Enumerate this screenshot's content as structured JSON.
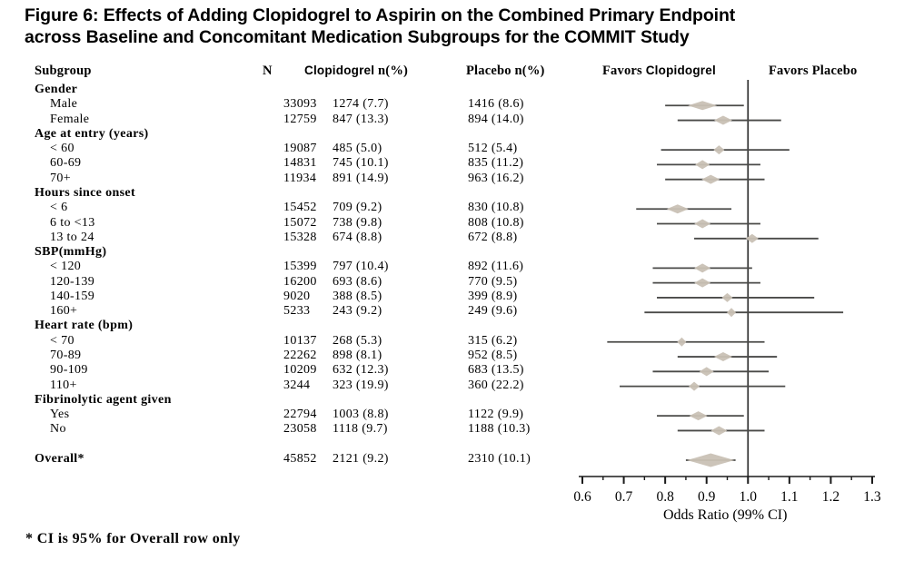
{
  "figure": {
    "title_line1": "Figure 6: Effects of Adding Clopidogrel to Aspirin on the Combined Primary Endpoint",
    "title_line2": "across Baseline and Concomitant Medication Subgroups for the COMMIT Study",
    "footnote": "* CI is 95% for Overall row only"
  },
  "table": {
    "headers": {
      "subgroup": "Subgroup",
      "n": "N",
      "clopidogrel_drug": "Clopidogrel",
      "clopidogrel_pct": "n(%)",
      "placebo": "Placebo n(%)"
    }
  },
  "chart_data": {
    "type": "forest",
    "xlabel": "Odds Ratio (99% CI)",
    "xlim": [
      0.6,
      1.3
    ],
    "ref_line": 1.0,
    "ticks": [
      0.6,
      0.7,
      0.8,
      0.9,
      1.0,
      1.1,
      1.2,
      1.3
    ],
    "favors_left_prefix": "Favors",
    "favors_left_drug": "Clopidogrel",
    "favors_right": "Favors Placebo",
    "diamond_color": "#c9c1b5",
    "line_color": "#4a4a48",
    "rows": [
      {
        "type": "group",
        "label": "Gender"
      },
      {
        "label": "Male",
        "n": "33093",
        "clopidogrel": "1274 (7.7)",
        "placebo": "1416 (8.6)",
        "or": 0.89,
        "lo": 0.8,
        "hi": 0.99,
        "hw": 16
      },
      {
        "label": "Female",
        "n": "12759",
        "clopidogrel": "847 (13.3)",
        "placebo": "894 (14.0)",
        "or": 0.94,
        "lo": 0.83,
        "hi": 1.08,
        "hw": 10
      },
      {
        "type": "group",
        "label": "Age at entry (years)"
      },
      {
        "label": "< 60",
        "n": "19087",
        "clopidogrel": "485 (5.0)",
        "placebo": "512 (5.4)",
        "or": 0.93,
        "lo": 0.79,
        "hi": 1.1,
        "hw": 6
      },
      {
        "label": "60-69",
        "n": "14831",
        "clopidogrel": "745 (10.1)",
        "placebo": "835 (11.2)",
        "or": 0.89,
        "lo": 0.78,
        "hi": 1.03,
        "hw": 8
      },
      {
        "label": "70+",
        "n": "11934",
        "clopidogrel": "891 (14.9)",
        "placebo": "963 (16.2)",
        "or": 0.91,
        "lo": 0.8,
        "hi": 1.04,
        "hw": 10
      },
      {
        "type": "group",
        "label": "Hours since onset"
      },
      {
        "label": "< 6",
        "n": "15452",
        "clopidogrel": "709 (9.2)",
        "placebo": "830 (10.8)",
        "or": 0.83,
        "lo": 0.73,
        "hi": 0.96,
        "hw": 12
      },
      {
        "label": "6 to <13",
        "n": "15072",
        "clopidogrel": "738 (9.8)",
        "placebo": "808 (10.8)",
        "or": 0.89,
        "lo": 0.78,
        "hi": 1.03,
        "hw": 9
      },
      {
        "label": "13 to 24",
        "n": "15328",
        "clopidogrel": "674 (8.8)",
        "placebo": "672 (8.8)",
        "or": 1.01,
        "lo": 0.87,
        "hi": 1.17,
        "hw": 7
      },
      {
        "type": "group",
        "label": "SBP(mmHg)"
      },
      {
        "label": "< 120",
        "n": "15399",
        "clopidogrel": "797 (10.4)",
        "placebo": "892 (11.6)",
        "or": 0.89,
        "lo": 0.77,
        "hi": 1.01,
        "hw": 9
      },
      {
        "label": "120-139",
        "n": "16200",
        "clopidogrel": "693 (8.6)",
        "placebo": "770 (9.5)",
        "or": 0.89,
        "lo": 0.77,
        "hi": 1.03,
        "hw": 9
      },
      {
        "label": "140-159",
        "n": "9020",
        "clopidogrel": "388 (8.5)",
        "placebo": "399 (8.9)",
        "or": 0.95,
        "lo": 0.78,
        "hi": 1.16,
        "hw": 6
      },
      {
        "label": "160+",
        "n": "5233",
        "clopidogrel": "243 (9.2)",
        "placebo": "249 (9.6)",
        "or": 0.96,
        "lo": 0.75,
        "hi": 1.23,
        "hw": 5
      },
      {
        "type": "group",
        "label": "Heart rate (bpm)"
      },
      {
        "label": "< 70",
        "n": "10137",
        "clopidogrel": "268 (5.3)",
        "placebo": "315 (6.2)",
        "or": 0.84,
        "lo": 0.66,
        "hi": 1.04,
        "hw": 5
      },
      {
        "label": "70-89",
        "n": "22262",
        "clopidogrel": "898 (8.1)",
        "placebo": "952 (8.5)",
        "or": 0.94,
        "lo": 0.83,
        "hi": 1.07,
        "hw": 10
      },
      {
        "label": "90-109",
        "n": "10209",
        "clopidogrel": "632 (12.3)",
        "placebo": "683 (13.5)",
        "or": 0.9,
        "lo": 0.77,
        "hi": 1.05,
        "hw": 8
      },
      {
        "label": "110+",
        "n": "3244",
        "clopidogrel": "323 (19.9)",
        "placebo": "360 (22.2)",
        "or": 0.87,
        "lo": 0.69,
        "hi": 1.09,
        "hw": 6
      },
      {
        "type": "group",
        "label": "Fibrinolytic agent given"
      },
      {
        "label": "Yes",
        "n": "22794",
        "clopidogrel": "1003 (8.8)",
        "placebo": "1122 (9.9)",
        "or": 0.88,
        "lo": 0.78,
        "hi": 0.99,
        "hw": 10
      },
      {
        "label": "No",
        "n": "23058",
        "clopidogrel": "1118 (9.7)",
        "placebo": "1188 (10.3)",
        "or": 0.93,
        "lo": 0.83,
        "hi": 1.04,
        "hw": 9
      },
      {
        "type": "spacer"
      },
      {
        "type": "overall",
        "label": "Overall*",
        "n": "45852",
        "clopidogrel": "2121 (9.2)",
        "placebo": "2310 (10.1)",
        "or": 0.91,
        "lo": 0.85,
        "hi": 0.97,
        "hw": 26
      }
    ]
  }
}
